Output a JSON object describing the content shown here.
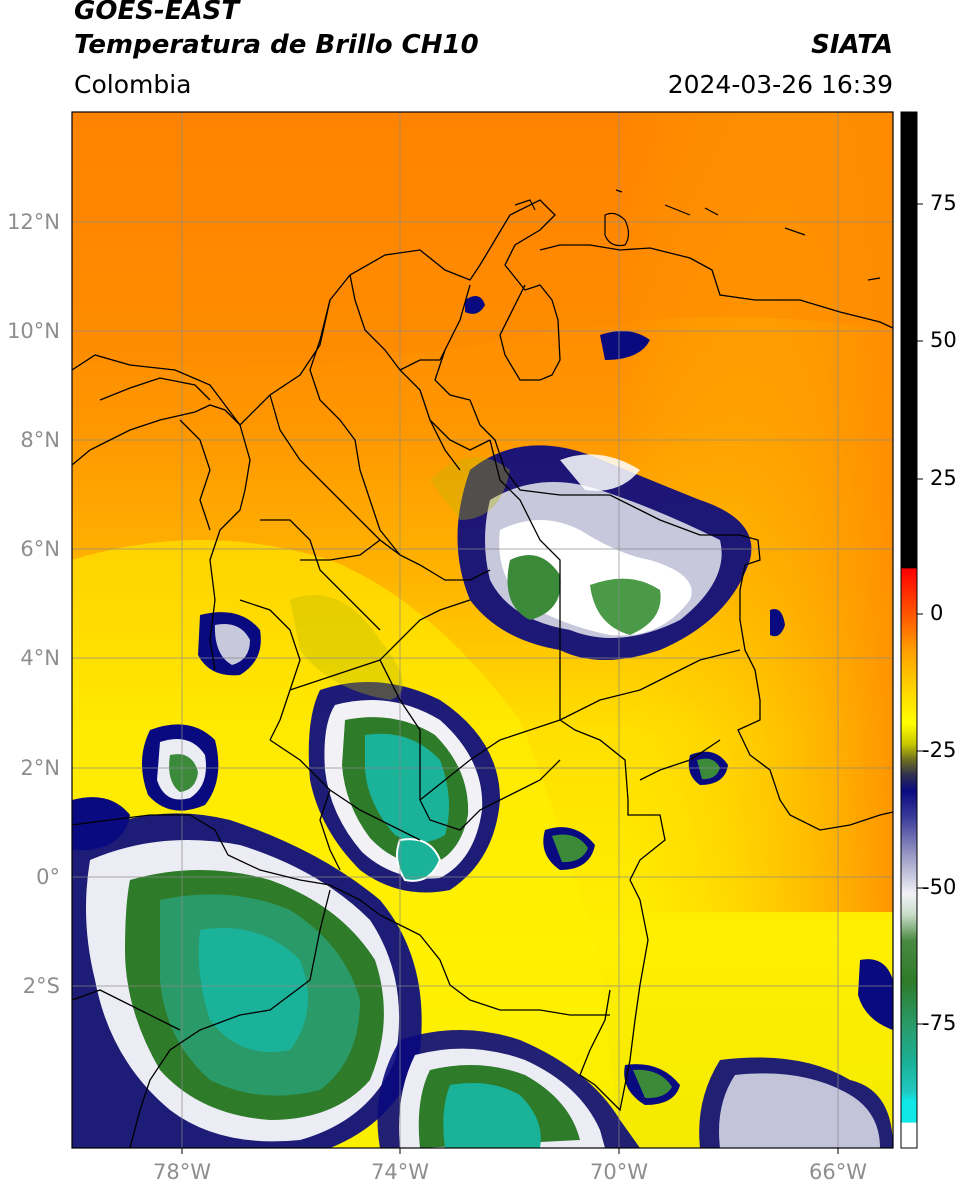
{
  "header": {
    "satellite": "GOES-EAST",
    "product": "Temperatura de Brillo CH10",
    "organization": "SIATA",
    "region": "Colombia",
    "timestamp": "2024-03-26 16:39"
  },
  "map": {
    "lat_labels": [
      "12°N",
      "10°N",
      "8°N",
      "6°N",
      "4°N",
      "2°N",
      "0°",
      "2°S"
    ],
    "lon_labels": [
      "78°W",
      "74°W",
      "70°W",
      "66°W"
    ],
    "gridline_color": "#8a8a8a",
    "border_color": "#000000"
  },
  "colorbar": {
    "ticks": [
      "75",
      "50",
      "25",
      "0",
      "-25",
      "-50",
      "-75"
    ],
    "range": [
      -95,
      90
    ],
    "unit_note": "",
    "colors": {
      "hot": "#000000",
      "red": "#ff2a00",
      "orange": "#ff8c00",
      "yellow": "#ffff00",
      "olive": "#7d7d00",
      "navy": "#0a0a80",
      "light": "#ececf4",
      "green": "#2e7b2a",
      "teal": "#1ab39a",
      "cyan": "#10e0e0"
    }
  }
}
